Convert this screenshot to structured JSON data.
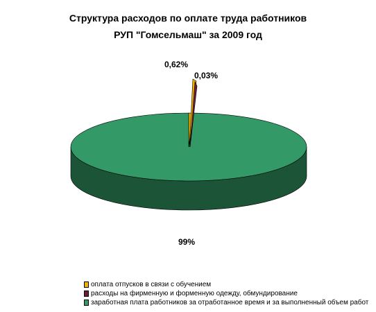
{
  "chart_data": {
    "type": "pie",
    "title": "Структура расходов по оплате труда работников",
    "subtitle": "РУП \"Гомсельмаш\" за 2009 год",
    "slices": [
      {
        "label": "оплата отпусков в связи с обучением",
        "value": 0.62,
        "display": "0,62%",
        "color": "#f0b400"
      },
      {
        "label": "расходы на фирменную и форменную одежду, обмундирование",
        "value": 0.03,
        "display": "0,03%",
        "color": "#6b1f3a"
      },
      {
        "label": "заработная плата работников за отработанное время и за выполненный объем работ",
        "value": 99,
        "display": "99%",
        "color": "#339966"
      }
    ],
    "legend_position": "bottom-left",
    "style": "3d"
  }
}
